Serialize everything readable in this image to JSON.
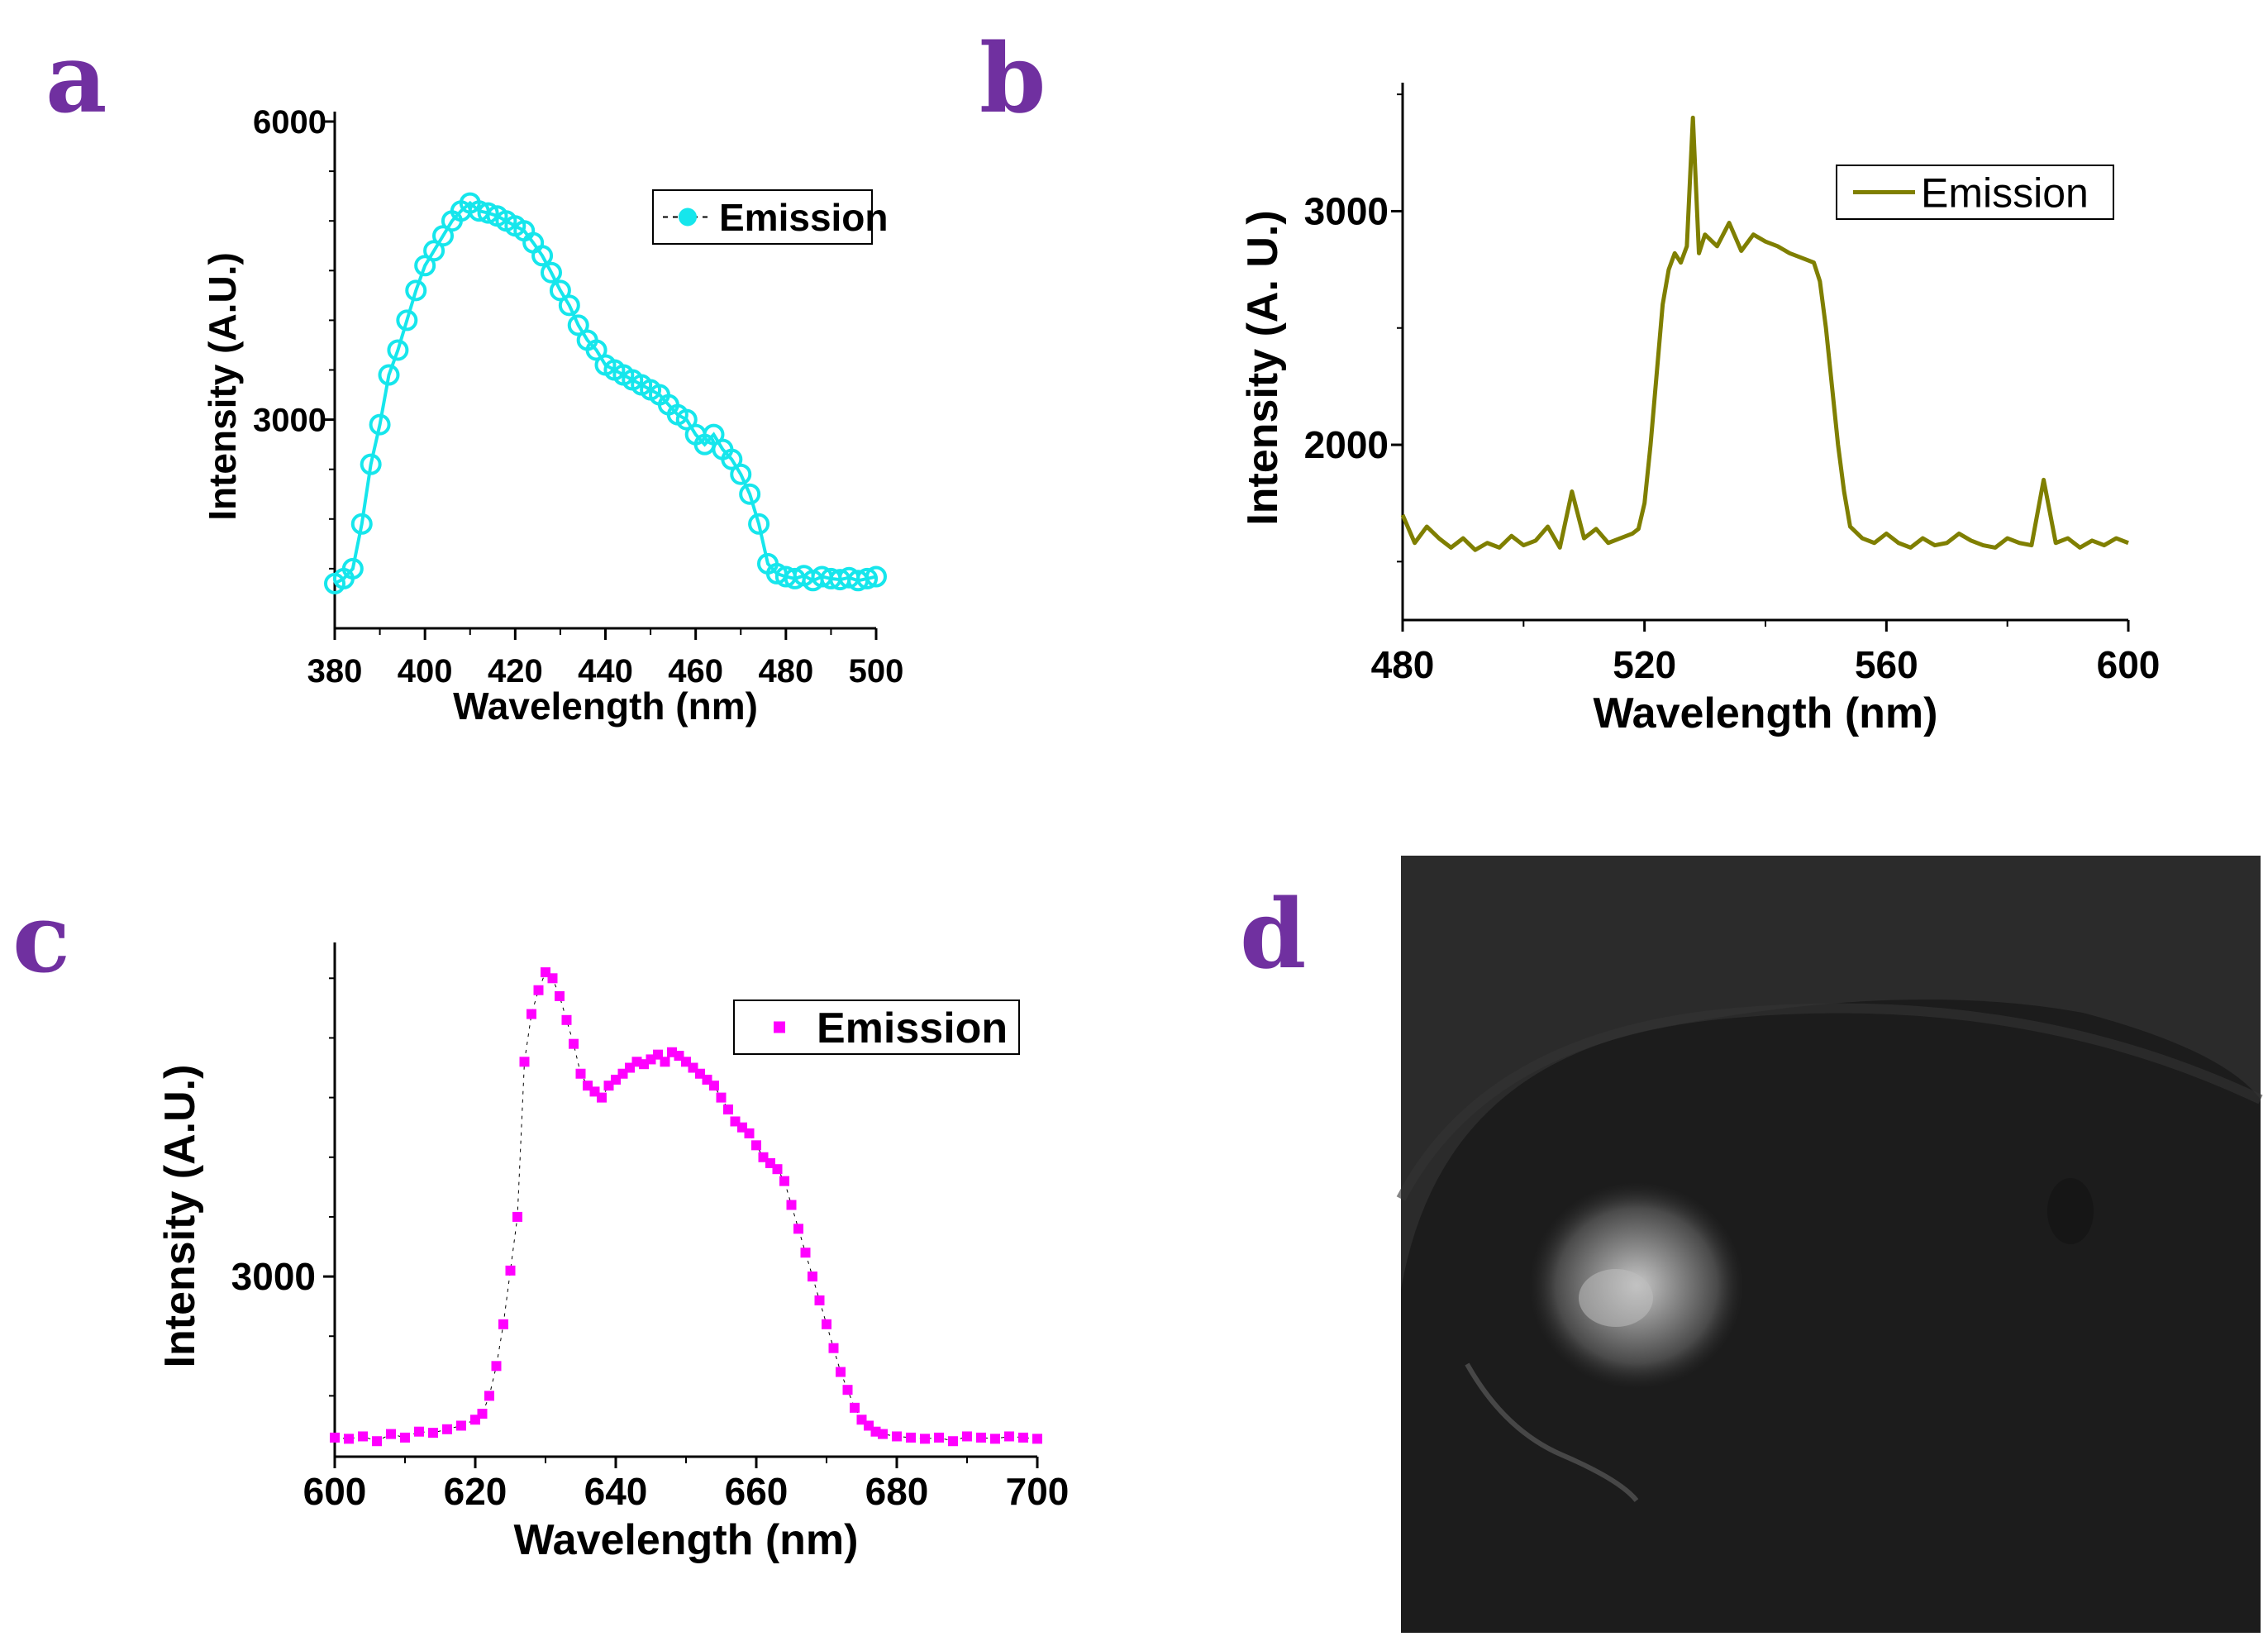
{
  "panel_labels": {
    "a": "a",
    "b": "b",
    "c": "c",
    "d": "d"
  },
  "chart_data": [
    {
      "panel": "a",
      "type": "scatter",
      "marker": "open-circle-line",
      "color": "#16e6ec",
      "xlabel": "Wavelength (nm)",
      "ylabel": "Intensity (A.U.)",
      "xlim": [
        380,
        500
      ],
      "ylim": [
        900,
        6100
      ],
      "xticks": [
        "380",
        "400",
        "420",
        "440",
        "460",
        "480",
        "500"
      ],
      "yticks": [
        "6000",
        "3000"
      ],
      "legend": {
        "label": "Emission",
        "placement": "top-right"
      },
      "x": [
        380,
        382,
        384,
        386,
        388,
        390,
        392,
        394,
        396,
        398,
        400,
        402,
        404,
        406,
        408,
        410,
        412,
        414,
        416,
        418,
        420,
        422,
        424,
        426,
        428,
        430,
        432,
        434,
        436,
        438,
        440,
        442,
        444,
        446,
        448,
        450,
        452,
        454,
        456,
        458,
        460,
        462,
        464,
        466,
        468,
        470,
        472,
        474,
        476,
        478,
        480,
        482,
        484,
        486,
        488,
        490,
        492,
        494,
        496,
        498,
        500
      ],
      "y": [
        1350,
        1400,
        1500,
        1950,
        2550,
        2950,
        3450,
        3700,
        4000,
        4300,
        4550,
        4700,
        4850,
        5000,
        5100,
        5180,
        5100,
        5080,
        5050,
        5000,
        4950,
        4900,
        4780,
        4650,
        4480,
        4300,
        4150,
        3950,
        3800,
        3700,
        3550,
        3500,
        3450,
        3400,
        3350,
        3300,
        3250,
        3150,
        3050,
        3000,
        2850,
        2750,
        2850,
        2700,
        2600,
        2450,
        2250,
        1950,
        1550,
        1450,
        1420,
        1400,
        1430,
        1380,
        1420,
        1400,
        1390,
        1410,
        1380,
        1400,
        1420
      ]
    },
    {
      "panel": "b",
      "type": "line",
      "color": "#7f7f00",
      "xlabel": "Wavelength (nm)",
      "ylabel": "Intensity (A. U.)",
      "xlim": [
        480,
        600
      ],
      "ylim": [
        1250,
        3550
      ],
      "xticks": [
        "480",
        "520",
        "560",
        "600"
      ],
      "yticks": [
        "3000",
        "2000"
      ],
      "legend": {
        "label": "Emission",
        "placement": "top-right"
      },
      "x": [
        480,
        482,
        484,
        486,
        488,
        490,
        492,
        494,
        496,
        498,
        500,
        502,
        504,
        506,
        508,
        510,
        512,
        514,
        516,
        518,
        519,
        520,
        521,
        522,
        523,
        524,
        525,
        526,
        527,
        528,
        529,
        530,
        532,
        534,
        536,
        538,
        540,
        542,
        544,
        546,
        548,
        549,
        550,
        551,
        552,
        553,
        554,
        556,
        558,
        560,
        562,
        564,
        566,
        568,
        570,
        572,
        574,
        576,
        578,
        580,
        582,
        584,
        586,
        588,
        590,
        592,
        594,
        596,
        598,
        600
      ],
      "y": [
        1700,
        1580,
        1650,
        1600,
        1560,
        1600,
        1550,
        1580,
        1560,
        1610,
        1570,
        1590,
        1650,
        1560,
        1800,
        1600,
        1640,
        1580,
        1600,
        1620,
        1640,
        1750,
        2000,
        2300,
        2600,
        2750,
        2820,
        2780,
        2850,
        3400,
        2820,
        2900,
        2850,
        2950,
        2830,
        2900,
        2870,
        2850,
        2820,
        2800,
        2780,
        2700,
        2500,
        2250,
        2000,
        1800,
        1650,
        1600,
        1580,
        1620,
        1580,
        1560,
        1600,
        1570,
        1580,
        1620,
        1590,
        1570,
        1560,
        1600,
        1580,
        1570,
        1850,
        1580,
        1600,
        1560,
        1590,
        1570,
        1600,
        1580
      ]
    },
    {
      "panel": "c",
      "type": "scatter",
      "marker": "filled-square",
      "color": "#ff00ff",
      "xlabel": "Wavelength (nm)",
      "ylabel": "Intensity (A.U.)",
      "xlim": [
        600,
        700
      ],
      "ylim": [
        1490,
        5800
      ],
      "xticks": [
        "600",
        "620",
        "640",
        "660",
        "680",
        "700"
      ],
      "yticks": [
        "3000"
      ],
      "legend": {
        "label": "Emission",
        "placement": "top-right"
      },
      "x": [
        600,
        602,
        604,
        606,
        608,
        610,
        612,
        614,
        616,
        618,
        620,
        621,
        622,
        623,
        624,
        625,
        626,
        627,
        628,
        629,
        630,
        631,
        632,
        633,
        634,
        635,
        636,
        637,
        638,
        639,
        640,
        641,
        642,
        643,
        644,
        645,
        646,
        647,
        648,
        649,
        650,
        651,
        652,
        653,
        654,
        655,
        656,
        657,
        658,
        659,
        660,
        661,
        662,
        663,
        664,
        665,
        666,
        667,
        668,
        669,
        670,
        671,
        672,
        673,
        674,
        675,
        676,
        677,
        678,
        680,
        682,
        684,
        686,
        688,
        690,
        692,
        694,
        696,
        698,
        700
      ],
      "y": [
        1650,
        1640,
        1660,
        1620,
        1680,
        1650,
        1700,
        1690,
        1720,
        1750,
        1800,
        1850,
        2000,
        2250,
        2600,
        3050,
        3500,
        4800,
        5200,
        5400,
        5550,
        5500,
        5350,
        5150,
        4950,
        4700,
        4600,
        4550,
        4500,
        4600,
        4650,
        4700,
        4750,
        4800,
        4780,
        4820,
        4860,
        4800,
        4880,
        4850,
        4800,
        4750,
        4700,
        4650,
        4600,
        4500,
        4400,
        4300,
        4250,
        4200,
        4100,
        4000,
        3950,
        3900,
        3800,
        3600,
        3400,
        3200,
        3000,
        2800,
        2600,
        2400,
        2200,
        2050,
        1900,
        1800,
        1750,
        1700,
        1680,
        1660,
        1650,
        1640,
        1650,
        1620,
        1660,
        1650,
        1640,
        1660,
        1650,
        1640
      ]
    }
  ],
  "panel_d": {
    "caption": "fluorescence microscope image (grayscale)"
  }
}
